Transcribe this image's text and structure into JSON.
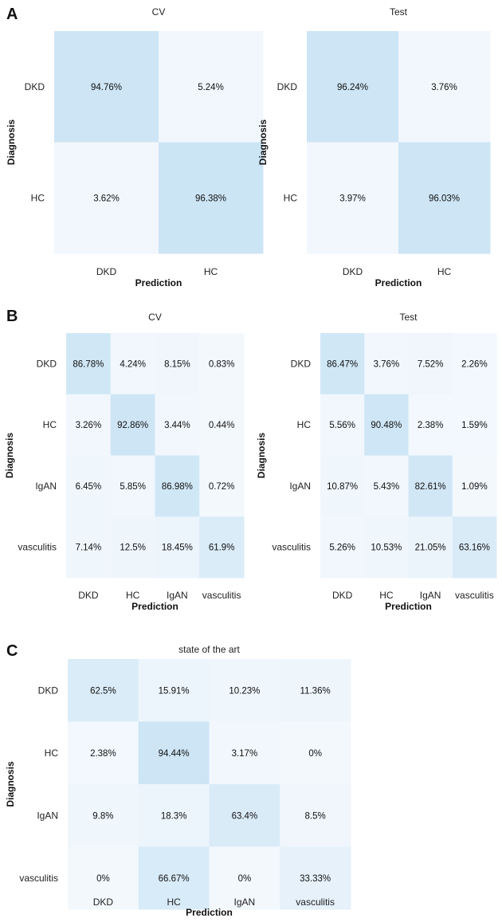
{
  "chart_data": [
    {
      "type": "heatmap",
      "panel": "A",
      "title": "CV",
      "xlabel": "Prediction",
      "ylabel": "Diagnosis",
      "categories": [
        "DKD",
        "HC"
      ],
      "value_labels": [
        [
          "94.76%",
          "5.24%"
        ],
        [
          "3.62%",
          "96.38%"
        ]
      ],
      "values": [
        [
          94.76,
          5.24
        ],
        [
          3.62,
          96.38
        ]
      ]
    },
    {
      "type": "heatmap",
      "panel": "",
      "title": "Test",
      "xlabel": "Prediction",
      "ylabel": "Diagnosis",
      "categories": [
        "DKD",
        "HC"
      ],
      "value_labels": [
        [
          "96.24%",
          "3.76%"
        ],
        [
          "3.97%",
          "96.03%"
        ]
      ],
      "values": [
        [
          96.24,
          3.76
        ],
        [
          3.97,
          96.03
        ]
      ]
    },
    {
      "type": "heatmap",
      "panel": "B",
      "title": "CV",
      "xlabel": "Prediction",
      "ylabel": "Diagnosis",
      "categories": [
        "DKD",
        "HC",
        "IgAN",
        "vasculitis"
      ],
      "value_labels": [
        [
          "86.78%",
          "4.24%",
          "8.15%",
          "0.83%"
        ],
        [
          "3.26%",
          "92.86%",
          "3.44%",
          "0.44%"
        ],
        [
          "6.45%",
          "5.85%",
          "86.98%",
          "0.72%"
        ],
        [
          "7.14%",
          "12.5%",
          "18.45%",
          "61.9%"
        ]
      ],
      "values": [
        [
          86.78,
          4.24,
          8.15,
          0.83
        ],
        [
          3.26,
          92.86,
          3.44,
          0.44
        ],
        [
          6.45,
          5.85,
          86.98,
          0.72
        ],
        [
          7.14,
          12.5,
          18.45,
          61.9
        ]
      ]
    },
    {
      "type": "heatmap",
      "panel": "",
      "title": "Test",
      "xlabel": "Prediction",
      "ylabel": "Diagnosis",
      "categories": [
        "DKD",
        "HC",
        "IgAN",
        "vasculitis"
      ],
      "value_labels": [
        [
          "86.47%",
          "3.76%",
          "7.52%",
          "2.26%"
        ],
        [
          "5.56%",
          "90.48%",
          "2.38%",
          "1.59%"
        ],
        [
          "10.87%",
          "5.43%",
          "82.61%",
          "1.09%"
        ],
        [
          "5.26%",
          "10.53%",
          "21.05%",
          "63.16%"
        ]
      ],
      "values": [
        [
          86.47,
          3.76,
          7.52,
          2.26
        ],
        [
          5.56,
          90.48,
          2.38,
          1.59
        ],
        [
          10.87,
          5.43,
          82.61,
          1.09
        ],
        [
          5.26,
          10.53,
          21.05,
          63.16
        ]
      ]
    },
    {
      "type": "heatmap",
      "panel": "C",
      "title": "state of the art",
      "xlabel": "Prediction",
      "ylabel": "Diagnosis",
      "categories": [
        "DKD",
        "HC",
        "IgAN",
        "vasculitis"
      ],
      "value_labels": [
        [
          "62.5%",
          "15.91%",
          "10.23%",
          "11.36%"
        ],
        [
          "2.38%",
          "94.44%",
          "3.17%",
          "0%"
        ],
        [
          "9.8%",
          "18.3%",
          "63.4%",
          "8.5%"
        ],
        [
          "0%",
          "66.67%",
          "0%",
          "33.33%"
        ]
      ],
      "values": [
        [
          62.5,
          15.91,
          10.23,
          11.36
        ],
        [
          2.38,
          94.44,
          3.17,
          0
        ],
        [
          9.8,
          18.3,
          63.4,
          8.5
        ],
        [
          0,
          66.67,
          0,
          33.33
        ]
      ]
    }
  ],
  "colors": {
    "low": "#f3f8fd",
    "high": "#cbe4f5"
  }
}
